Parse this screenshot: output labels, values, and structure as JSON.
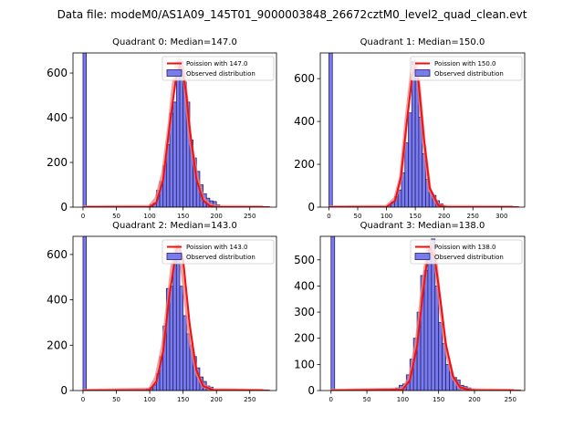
{
  "suptitle": "Data file: modeM0/AS1A09_145T01_9000003848_26672cztM0_level2_quad_clean.evt",
  "colors": {
    "bar_fill": "#7b7bf0",
    "bar_edge": "#22226b",
    "poisson_line": "#ee1111",
    "observed_line": "#f08080"
  },
  "chart_data": [
    {
      "type": "bar",
      "title": "Quadrant 0: Median=147.0",
      "xlim": [
        -15,
        290
      ],
      "ylim": [
        0,
        690
      ],
      "xticks": [
        0,
        50,
        100,
        150,
        200,
        250
      ],
      "yticks": [
        0,
        200,
        400,
        600
      ],
      "legend": [
        "Poission with 147.0",
        "Observed distribution"
      ],
      "legend_placement": "top-right",
      "bin_width": 5,
      "bins": [
        [
          0,
          690
        ],
        [
          100,
          12
        ],
        [
          105,
          20
        ],
        [
          110,
          75
        ],
        [
          115,
          115
        ],
        [
          120,
          185
        ],
        [
          125,
          280
        ],
        [
          130,
          420
        ],
        [
          135,
          470
        ],
        [
          140,
          600
        ],
        [
          145,
          650
        ],
        [
          150,
          560
        ],
        [
          155,
          470
        ],
        [
          160,
          300
        ],
        [
          165,
          220
        ],
        [
          170,
          160
        ],
        [
          175,
          100
        ],
        [
          180,
          60
        ],
        [
          185,
          40
        ],
        [
          190,
          28
        ],
        [
          195,
          25
        ],
        [
          200,
          10
        ]
      ],
      "observed_curve": [
        [
          0,
          0
        ],
        [
          100,
          2
        ],
        [
          110,
          40
        ],
        [
          120,
          150
        ],
        [
          130,
          380
        ],
        [
          135,
          530
        ],
        [
          140,
          640
        ],
        [
          145,
          660
        ],
        [
          150,
          620
        ],
        [
          155,
          490
        ],
        [
          160,
          320
        ],
        [
          170,
          140
        ],
        [
          180,
          40
        ],
        [
          190,
          10
        ],
        [
          200,
          2
        ],
        [
          270,
          0
        ]
      ],
      "poisson_curve": [
        [
          0,
          0
        ],
        [
          100,
          1
        ],
        [
          110,
          20
        ],
        [
          120,
          120
        ],
        [
          130,
          370
        ],
        [
          140,
          590
        ],
        [
          145,
          635
        ],
        [
          150,
          600
        ],
        [
          155,
          500
        ],
        [
          160,
          350
        ],
        [
          170,
          125
        ],
        [
          180,
          30
        ],
        [
          190,
          5
        ],
        [
          200,
          0
        ],
        [
          280,
          0
        ]
      ]
    },
    {
      "type": "bar",
      "title": "Quadrant 1: Median=150.0",
      "xlim": [
        -15,
        340
      ],
      "ylim": [
        0,
        720
      ],
      "xticks": [
        0,
        50,
        100,
        150,
        200,
        250,
        300
      ],
      "yticks": [
        0,
        200,
        400,
        600
      ],
      "legend": [
        "Poission with 150.0",
        "Observed distribution"
      ],
      "legend_placement": "top-right",
      "bin_width": 6,
      "bins": [
        [
          0,
          720
        ],
        [
          102,
          5
        ],
        [
          108,
          25
        ],
        [
          114,
          50
        ],
        [
          120,
          80
        ],
        [
          126,
          160
        ],
        [
          132,
          300
        ],
        [
          138,
          440
        ],
        [
          144,
          680
        ],
        [
          150,
          600
        ],
        [
          156,
          420
        ],
        [
          162,
          250
        ],
        [
          168,
          130
        ],
        [
          174,
          70
        ],
        [
          180,
          55
        ],
        [
          186,
          30
        ],
        [
          192,
          15
        ]
      ],
      "observed_curve": [
        [
          0,
          0
        ],
        [
          100,
          2
        ],
        [
          115,
          40
        ],
        [
          125,
          140
        ],
        [
          135,
          420
        ],
        [
          145,
          650
        ],
        [
          150,
          680
        ],
        [
          155,
          600
        ],
        [
          165,
          300
        ],
        [
          175,
          80
        ],
        [
          190,
          10
        ],
        [
          200,
          2
        ],
        [
          320,
          0
        ]
      ],
      "poisson_curve": [
        [
          0,
          0
        ],
        [
          100,
          1
        ],
        [
          115,
          30
        ],
        [
          125,
          140
        ],
        [
          135,
          390
        ],
        [
          145,
          620
        ],
        [
          150,
          650
        ],
        [
          155,
          600
        ],
        [
          165,
          320
        ],
        [
          175,
          90
        ],
        [
          190,
          8
        ],
        [
          205,
          0
        ],
        [
          330,
          0
        ]
      ]
    },
    {
      "type": "bar",
      "title": "Quadrant 2: Median=143.0",
      "xlim": [
        -15,
        290
      ],
      "ylim": [
        0,
        680
      ],
      "xticks": [
        0,
        50,
        100,
        150,
        200,
        250
      ],
      "yticks": [
        0,
        200,
        400,
        600
      ],
      "legend": [
        "Poission with 143.0",
        "Observed distribution"
      ],
      "legend_placement": "top-right",
      "bin_width": 5,
      "bins": [
        [
          0,
          680
        ],
        [
          95,
          8
        ],
        [
          100,
          15
        ],
        [
          105,
          25
        ],
        [
          110,
          75
        ],
        [
          115,
          150
        ],
        [
          120,
          285
        ],
        [
          125,
          450
        ],
        [
          130,
          460
        ],
        [
          135,
          580
        ],
        [
          140,
          620
        ],
        [
          145,
          460
        ],
        [
          150,
          330
        ],
        [
          155,
          250
        ],
        [
          160,
          200
        ],
        [
          165,
          150
        ],
        [
          170,
          100
        ],
        [
          175,
          60
        ],
        [
          180,
          40
        ],
        [
          185,
          20
        ],
        [
          190,
          15
        ]
      ],
      "observed_curve": [
        [
          0,
          0
        ],
        [
          100,
          5
        ],
        [
          110,
          60
        ],
        [
          120,
          200
        ],
        [
          130,
          450
        ],
        [
          135,
          580
        ],
        [
          140,
          640
        ],
        [
          145,
          620
        ],
        [
          150,
          500
        ],
        [
          160,
          230
        ],
        [
          170,
          80
        ],
        [
          180,
          20
        ],
        [
          195,
          3
        ],
        [
          270,
          0
        ]
      ],
      "poisson_curve": [
        [
          0,
          0
        ],
        [
          100,
          2
        ],
        [
          110,
          40
        ],
        [
          120,
          170
        ],
        [
          130,
          430
        ],
        [
          140,
          620
        ],
        [
          143,
          640
        ],
        [
          150,
          580
        ],
        [
          160,
          290
        ],
        [
          170,
          90
        ],
        [
          180,
          20
        ],
        [
          195,
          2
        ],
        [
          280,
          0
        ]
      ]
    },
    {
      "type": "bar",
      "title": "Quadrant 3: Median=138.0",
      "xlim": [
        -15,
        270
      ],
      "ylim": [
        0,
        590
      ],
      "xticks": [
        0,
        50,
        100,
        150,
        200,
        250
      ],
      "yticks": [
        0,
        100,
        200,
        300,
        400,
        500
      ],
      "legend": [
        "Poission with 138.0",
        "Observed distribution"
      ],
      "legend_placement": "top-right",
      "bin_width": 5,
      "bins": [
        [
          0,
          590
        ],
        [
          80,
          3
        ],
        [
          85,
          5
        ],
        [
          90,
          10
        ],
        [
          95,
          20
        ],
        [
          100,
          25
        ],
        [
          105,
          60
        ],
        [
          110,
          120
        ],
        [
          115,
          200
        ],
        [
          120,
          300
        ],
        [
          125,
          440
        ],
        [
          130,
          460
        ],
        [
          135,
          540
        ],
        [
          140,
          580
        ],
        [
          145,
          400
        ],
        [
          150,
          260
        ],
        [
          155,
          180
        ],
        [
          160,
          100
        ],
        [
          165,
          70
        ],
        [
          170,
          50
        ],
        [
          175,
          40
        ],
        [
          180,
          20
        ],
        [
          185,
          15
        ],
        [
          190,
          10
        ],
        [
          195,
          5
        ],
        [
          200,
          3
        ]
      ],
      "observed_curve": [
        [
          0,
          0
        ],
        [
          100,
          5
        ],
        [
          110,
          50
        ],
        [
          120,
          200
        ],
        [
          128,
          400
        ],
        [
          135,
          540
        ],
        [
          140,
          570
        ],
        [
          145,
          520
        ],
        [
          150,
          380
        ],
        [
          160,
          160
        ],
        [
          170,
          50
        ],
        [
          180,
          10
        ],
        [
          195,
          2
        ],
        [
          255,
          0
        ]
      ],
      "poisson_curve": [
        [
          0,
          0
        ],
        [
          100,
          3
        ],
        [
          110,
          40
        ],
        [
          120,
          170
        ],
        [
          128,
          370
        ],
        [
          135,
          520
        ],
        [
          138,
          545
        ],
        [
          145,
          500
        ],
        [
          150,
          400
        ],
        [
          160,
          180
        ],
        [
          170,
          55
        ],
        [
          180,
          12
        ],
        [
          195,
          1
        ],
        [
          265,
          0
        ]
      ]
    }
  ]
}
